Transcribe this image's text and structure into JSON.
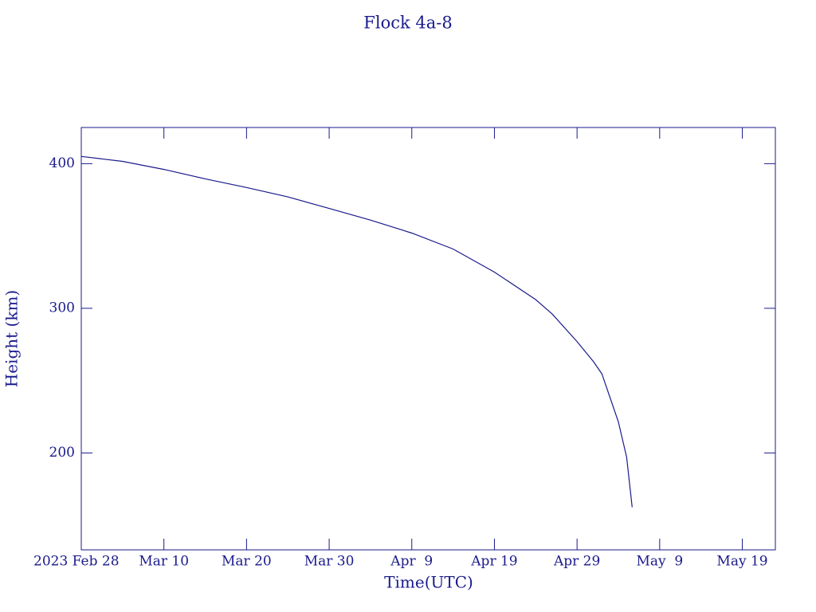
{
  "chart_data": {
    "type": "line",
    "title": "Flock 4a-8",
    "x_label": "Time(UTC)",
    "y_label": "Height (km)",
    "color": "#1a1a8c",
    "xlim": [
      "2023-02-28",
      "2023-05-23"
    ],
    "ylim": [
      133,
      425
    ],
    "xticks": [
      {
        "value": "2023-02-28",
        "label": "2023 Feb 28"
      },
      {
        "value": "2023-03-10",
        "label": "Mar 10"
      },
      {
        "value": "2023-03-20",
        "label": "Mar 20"
      },
      {
        "value": "2023-03-30",
        "label": "Mar 30"
      },
      {
        "value": "2023-04-09",
        "label": "Apr  9"
      },
      {
        "value": "2023-04-19",
        "label": "Apr 19"
      },
      {
        "value": "2023-04-29",
        "label": "Apr 29"
      },
      {
        "value": "2023-05-09",
        "label": "May  9"
      },
      {
        "value": "2023-05-19",
        "label": "May 19"
      }
    ],
    "yticks": [
      200,
      300,
      400
    ],
    "x": [
      "2023-02-28",
      "2023-03-05",
      "2023-03-10",
      "2023-03-15",
      "2023-03-20",
      "2023-03-25",
      "2023-03-30",
      "2023-04-04",
      "2023-04-09",
      "2023-04-14",
      "2023-04-19",
      "2023-04-24",
      "2023-04-26",
      "2023-04-29",
      "2023-05-01",
      "2023-05-02",
      "2023-05-04",
      "2023-05-05",
      "2023-05-05T16:00"
    ],
    "values": [
      405,
      401.6,
      396,
      389.5,
      383.5,
      377,
      369,
      361,
      352,
      341,
      325,
      306,
      296,
      277,
      263,
      254.7,
      221.5,
      197,
      162.5
    ]
  }
}
